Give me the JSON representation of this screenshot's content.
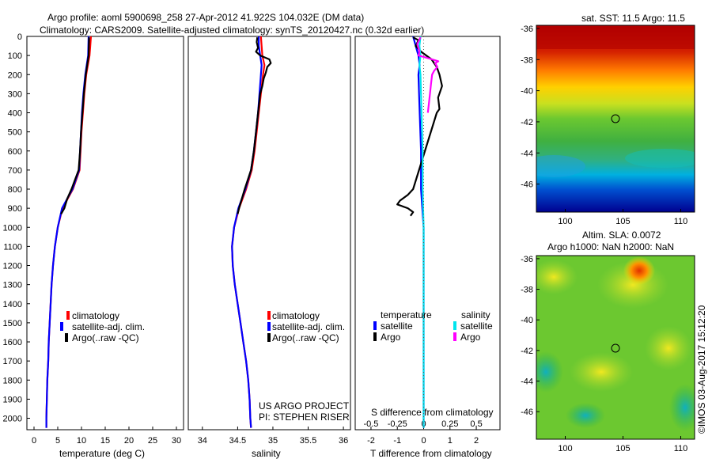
{
  "title": {
    "line1": "Argo profile: aoml 5900698_258 27-Apr-2012 41.922S 104.032E (DM data)",
    "line2": "Climatology: CARS2009. Satellite-adjusted climatology: synTS_20120427.nc (0.32d earlier)"
  },
  "depth_ticks": [
    0,
    100,
    200,
    300,
    400,
    500,
    600,
    700,
    800,
    900,
    1000,
    1100,
    1200,
    1300,
    1400,
    1500,
    1600,
    1700,
    1800,
    1900,
    2000
  ],
  "colors": {
    "climatology": "#ff0000",
    "satellite": "#0000ff",
    "argo": "#000000",
    "sal_satellite": "#00e5ee",
    "sal_argo": "#ff00ff"
  },
  "chart_data": [
    {
      "type": "line",
      "name": "temperature",
      "xlabel": "temperature (deg C)",
      "xlim": [
        -1.5,
        31.5
      ],
      "ylim": [
        0,
        2060
      ],
      "x_ticks": [
        0,
        5,
        10,
        15,
        20,
        25,
        30
      ],
      "legend": [
        "climatology",
        "satellite-adj. clim.",
        "Argo(..raw -QC)"
      ],
      "legend_placement": "lower-right",
      "series": [
        {
          "name": "climatology",
          "color": "#ff0000",
          "depth": [
            0,
            100,
            200,
            300,
            400,
            500,
            600,
            700,
            800,
            900,
            1000,
            1100,
            1200,
            1300,
            1400,
            1500,
            1600,
            1700,
            1800,
            1900,
            2000,
            2050
          ],
          "x": [
            12.0,
            11.7,
            11.0,
            10.6,
            10.3,
            10.0,
            9.8,
            9.6,
            8.2,
            6.0,
            5.0,
            4.4,
            4.0,
            3.7,
            3.5,
            3.3,
            3.1,
            3.0,
            2.8,
            2.7,
            2.6,
            2.6
          ]
        },
        {
          "name": "satellite-adj. clim.",
          "color": "#0000ff",
          "depth": [
            0,
            100,
            200,
            300,
            400,
            500,
            600,
            700,
            800,
            900,
            1000,
            1100,
            1200,
            1300,
            1400,
            1500,
            1600,
            1700,
            1800,
            1900,
            2000,
            2050
          ],
          "x": [
            11.5,
            11.4,
            10.8,
            10.4,
            10.1,
            9.9,
            9.7,
            9.5,
            8.1,
            5.9,
            5.0,
            4.4,
            4.0,
            3.7,
            3.5,
            3.3,
            3.1,
            3.0,
            2.8,
            2.7,
            2.6,
            2.6
          ]
        },
        {
          "name": "Argo(..raw -QC)",
          "color": "#000000",
          "depth": [
            5,
            100,
            200,
            300,
            400,
            500,
            600,
            700,
            800,
            850,
            900,
            930
          ],
          "x": [
            11.6,
            11.5,
            10.9,
            10.5,
            10.2,
            9.9,
            9.7,
            9.4,
            7.9,
            7.0,
            6.4,
            5.7
          ]
        }
      ]
    },
    {
      "type": "line",
      "name": "salinity",
      "xlabel": "salinity",
      "xlim": [
        33.8,
        36.1
      ],
      "ylim": [
        0,
        2060
      ],
      "x_ticks": [
        34,
        34.5,
        35,
        35.5,
        36
      ],
      "legend": [
        "climatology",
        "satellite-adj. clim.",
        "Argo(..raw -QC)"
      ],
      "legend_placement": "lower-right",
      "annotation": [
        "US ARGO PROJECT",
        "PI: STEPHEN RISER"
      ],
      "series": [
        {
          "name": "climatology",
          "color": "#ff0000",
          "depth": [
            0,
            50,
            100,
            150,
            200,
            300,
            400,
            500,
            600,
            700,
            800,
            900,
            1000,
            1100,
            1200,
            1300,
            1400,
            1500,
            1600,
            1700,
            1800,
            1900,
            2000,
            2050
          ],
          "x": [
            34.83,
            34.84,
            34.85,
            34.88,
            34.86,
            34.83,
            34.8,
            34.77,
            34.74,
            34.7,
            34.62,
            34.52,
            34.45,
            34.42,
            34.43,
            34.46,
            34.5,
            34.54,
            34.58,
            34.62,
            34.65,
            34.67,
            34.68,
            34.69
          ]
        },
        {
          "name": "satellite-adj. clim.",
          "color": "#0000ff",
          "depth": [
            0,
            50,
            100,
            150,
            200,
            300,
            400,
            500,
            600,
            700,
            800,
            900,
            1000,
            1100,
            1200,
            1300,
            1400,
            1500,
            1600,
            1700,
            1800,
            1900,
            2000,
            2050
          ],
          "x": [
            34.8,
            34.8,
            34.82,
            34.84,
            34.83,
            34.81,
            34.79,
            34.76,
            34.73,
            34.69,
            34.61,
            34.51,
            34.45,
            34.42,
            34.43,
            34.46,
            34.5,
            34.54,
            34.58,
            34.62,
            34.65,
            34.67,
            34.68,
            34.69
          ]
        },
        {
          "name": "Argo(..raw -QC)",
          "color": "#000000",
          "depth": [
            5,
            30,
            60,
            80,
            100,
            120,
            140,
            160,
            190,
            220,
            260,
            300,
            400,
            500,
            600,
            700,
            800,
            850,
            900,
            930
          ],
          "x": [
            34.78,
            34.77,
            34.79,
            34.76,
            34.82,
            34.95,
            34.97,
            34.92,
            34.9,
            34.87,
            34.85,
            34.82,
            34.79,
            34.76,
            34.73,
            34.69,
            34.6,
            34.56,
            34.52,
            34.5
          ]
        }
      ]
    },
    {
      "type": "line",
      "name": "difference",
      "xlabel": "T difference from climatology",
      "x2label": "S difference from climatology",
      "xlim": [
        -2.6,
        2.9
      ],
      "ylim": [
        0,
        2060
      ],
      "x_ticks": [
        -2,
        -1,
        0,
        1,
        2
      ],
      "x2_ticks": [
        "-0.5",
        "-0.25",
        "0",
        "0.25",
        "0.5"
      ],
      "legend_groups": [
        {
          "title": "temperature",
          "entries": [
            "satellite",
            "Argo"
          ]
        },
        {
          "title": "salinity",
          "entries": [
            "satellite",
            "Argo"
          ]
        }
      ],
      "series": [
        {
          "name": "temperature satellite",
          "color": "#0000ff",
          "depth": [
            0,
            50,
            100,
            150,
            200,
            400,
            600,
            800,
            900,
            1000,
            1200,
            1500,
            1800,
            2050
          ],
          "x": [
            -0.4,
            -0.3,
            -0.2,
            -0.15,
            -0.2,
            -0.15,
            -0.1,
            -0.1,
            -0.05,
            0,
            0,
            0,
            0,
            0
          ]
        },
        {
          "name": "temperature Argo",
          "color": "#000000",
          "depth": [
            5,
            20,
            50,
            80,
            120,
            160,
            200,
            260,
            320,
            380,
            400,
            800,
            830,
            860,
            880,
            900,
            920,
            940
          ],
          "x": [
            -0.4,
            -0.2,
            -0.3,
            -0.1,
            0.3,
            0.5,
            0.6,
            0.7,
            0.55,
            0.6,
            0.5,
            -0.4,
            -0.6,
            -0.9,
            -1.0,
            -0.6,
            -0.4,
            -0.5
          ]
        },
        {
          "name": "salinity satellite",
          "color": "#00e5ee",
          "depth": [
            0,
            50,
            100,
            150,
            200,
            400,
            600,
            800,
            1000,
            1200,
            1500,
            2050
          ],
          "x": [
            -0.03,
            -0.04,
            -0.03,
            -0.04,
            -0.03,
            -0.02,
            -0.01,
            -0.01,
            0,
            0,
            0,
            0
          ]
        },
        {
          "name": "salinity Argo",
          "color": "#ff00ff",
          "depth": [
            5,
            40,
            80,
            100,
            120,
            130,
            140,
            160,
            180,
            200,
            250,
            300,
            350,
            400
          ],
          "x": [
            -0.03,
            -0.06,
            -0.04,
            -0.05,
            0.08,
            0.14,
            0.11,
            0.13,
            0.1,
            0.08,
            0.07,
            0.06,
            0.05,
            0.04
          ]
        }
      ]
    },
    {
      "type": "heatmap",
      "name": "sst-map",
      "title": "sat. SST: 11.5 Argo: 11.5",
      "x_ticks": [
        100,
        105,
        110
      ],
      "y_ticks": [
        -36,
        -38,
        -40,
        -42,
        -44,
        -46
      ],
      "xlim": [
        97.5,
        111.2
      ],
      "ylim": [
        -47.8,
        -35.8
      ],
      "marker": {
        "lon": 104.03,
        "lat": -41.92
      }
    },
    {
      "type": "heatmap",
      "name": "sla-map",
      "title": "Altim. SLA: 0.0072",
      "subtitle": "Argo h1000: NaN h2000: NaN",
      "x_ticks": [
        100,
        105,
        110
      ],
      "y_ticks": [
        -36,
        -38,
        -40,
        -42,
        -44,
        -46
      ],
      "xlim": [
        97.5,
        111.2
      ],
      "ylim": [
        -47.8,
        -35.8
      ],
      "marker": {
        "lon": 104.03,
        "lat": -41.92
      }
    }
  ],
  "footer": "©IMOS 03-Aug-2017 15:12:20"
}
